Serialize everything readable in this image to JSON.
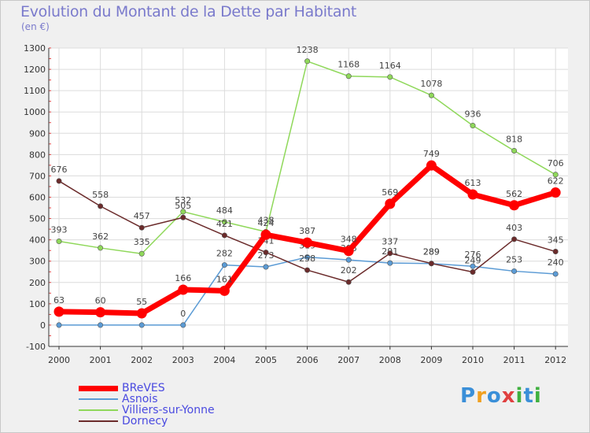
{
  "title": "Evolution du Montant de la Dette par Habitant",
  "subtitle": "(en €)",
  "logo": {
    "text": "Proxiti",
    "letters": [
      "P",
      "r",
      "o",
      "x",
      "i",
      "t",
      "i"
    ],
    "colors": [
      "#3a8fd8",
      "#f0a020",
      "#3a8fd8",
      "#e04040",
      "#40b040",
      "#3a8fd8",
      "#40b040"
    ]
  },
  "chart_data": {
    "type": "line",
    "x": [
      "2000",
      "2001",
      "2002",
      "2003",
      "2004",
      "2005",
      "2006",
      "2007",
      "2008",
      "2009",
      "2010",
      "2011",
      "2012"
    ],
    "ylim": [
      -100,
      1300
    ],
    "yticks": [
      -100,
      0,
      100,
      200,
      300,
      400,
      500,
      600,
      700,
      800,
      900,
      1000,
      1100,
      1200,
      1300
    ],
    "grid": true,
    "legend_position": "bottom-left",
    "series": [
      {
        "name": "Asnois",
        "color": "#5b9bd5",
        "values": [
          0,
          0,
          0,
          0,
          282,
          273,
          319,
          306,
          291,
          289,
          276,
          253,
          240
        ]
      },
      {
        "name": "Villiers-sur-Yonne",
        "color": "#8fd85a",
        "values": [
          393,
          362,
          335,
          532,
          484,
          438,
          1238,
          1168,
          1164,
          1078,
          936,
          818,
          706
        ]
      },
      {
        "name": "Dornecy",
        "color": "#6b2b2b",
        "values": [
          676,
          558,
          457,
          505,
          421,
          341,
          258,
          202,
          337,
          289,
          249,
          403,
          345
        ]
      },
      {
        "name": "BReVES",
        "color": "#ff0000",
        "values": [
          63,
          60,
          55,
          166,
          161,
          424,
          387,
          348,
          569,
          749,
          613,
          562,
          622
        ]
      }
    ],
    "legend_order": [
      "BReVES",
      "Asnois",
      "Villiers-sur-Yonne",
      "Dornecy"
    ]
  }
}
